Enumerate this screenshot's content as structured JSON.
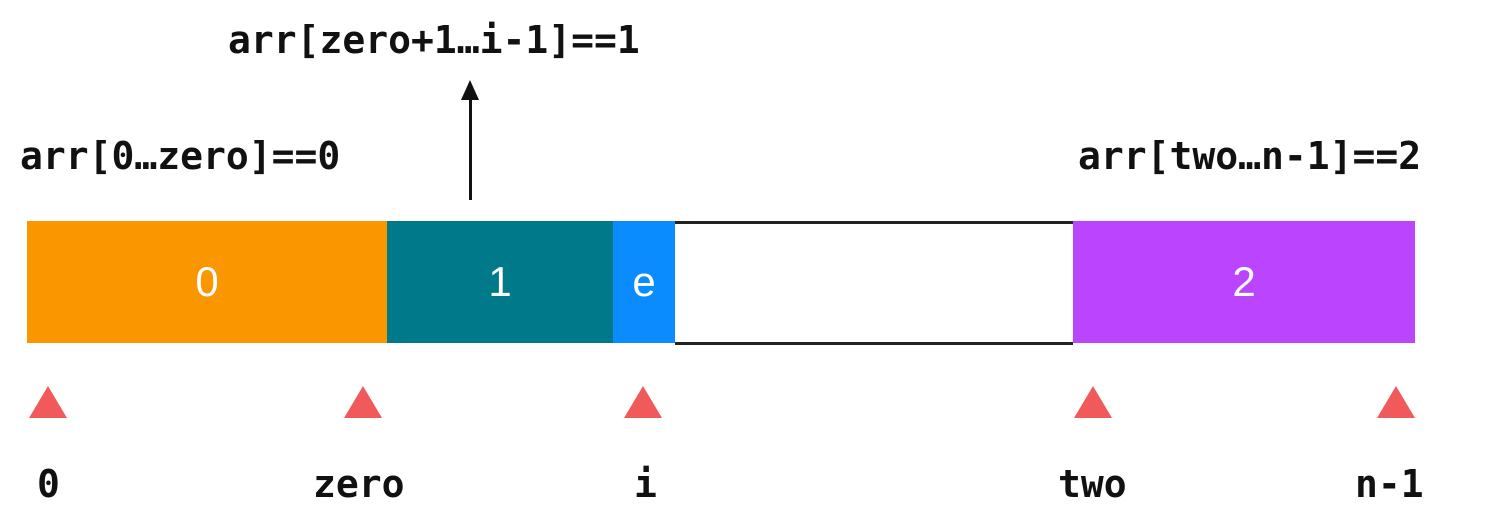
{
  "annotations": {
    "middle": "arr[zero+1…i-1]==1",
    "left": "arr[0…zero]==0",
    "right": "arr[two…n-1]==2"
  },
  "segments": {
    "zeros": {
      "label": "0",
      "color": "#fa9600"
    },
    "ones": {
      "label": "1",
      "color": "#007a8a"
    },
    "current": {
      "label": "e",
      "color": "#0a8cff"
    },
    "unprocessed": {
      "label": ""
    },
    "twos": {
      "label": "2",
      "color": "#bb45ff"
    }
  },
  "marker_color": "#f05a5a",
  "indices": {
    "start": "0",
    "zero": "zero",
    "i": "i",
    "two": "two",
    "end": "n-1"
  }
}
